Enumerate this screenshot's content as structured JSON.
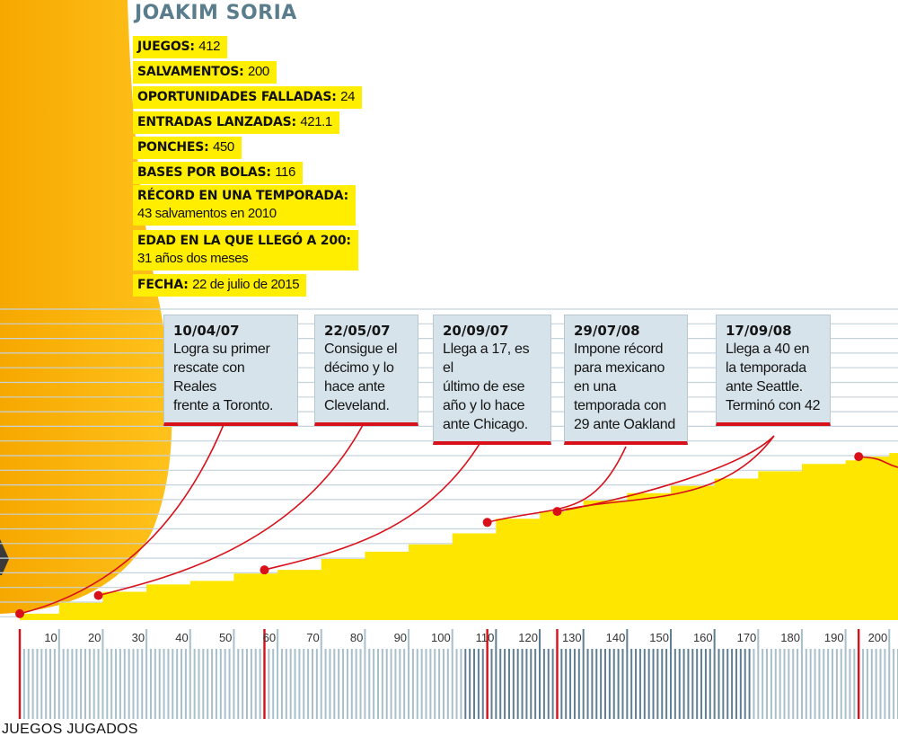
{
  "player": {
    "name": "JOAKIM SORIA"
  },
  "stats": [
    {
      "label": "JUEGOS:",
      "value": "412"
    },
    {
      "label": "SALVAMENTOS:",
      "value": "200"
    },
    {
      "label": "OPORTUNIDADES FALLADAS:",
      "value": "24"
    },
    {
      "label": "ENTRADAS LANZADAS:",
      "value": "421.1"
    },
    {
      "label": "PONCHES:",
      "value": "450"
    },
    {
      "label": "BASES POR BOLAS:",
      "value": "116"
    },
    {
      "label": "RÉCORD EN UNA TEMPORADA:",
      "value": "43 salvamentos en 2010"
    },
    {
      "label": "EDAD EN LA QUE LLEGÓ A 200:",
      "value": "31 años dos meses"
    },
    {
      "label": "FECHA:",
      "value": "22 de julio de 2015"
    }
  ],
  "milestones": [
    {
      "date": "10/04/07",
      "text": [
        "Logra su primer",
        "rescate con Reales",
        "frente a Toronto."
      ]
    },
    {
      "date": "22/05/07",
      "text": [
        "Consigue el",
        "décimo y lo",
        "hace ante",
        "Cleveland."
      ]
    },
    {
      "date": "20/09/07",
      "text": [
        "Llega a 17, es el",
        "último de ese",
        "año y lo hace",
        "ante Chicago."
      ]
    },
    {
      "date": "29/07/08",
      "text": [
        "Impone récord",
        "para mexicano",
        "en una",
        "temporada con",
        "29 ante Oakland"
      ]
    },
    {
      "date": "17/09/08",
      "text": [
        "Llega a 40 en",
        "la temporada",
        "ante Seattle.",
        "Terminó con 42"
      ]
    }
  ],
  "chart_data": {
    "type": "area",
    "xlabel": "JUEGOS JUGADOS",
    "x_ticks": [
      10,
      20,
      30,
      40,
      50,
      60,
      70,
      80,
      90,
      100,
      110,
      120,
      130,
      140,
      150,
      160,
      170,
      180,
      190,
      200
    ],
    "xlim": [
      1,
      202
    ],
    "series": [
      {
        "x": [
          1,
          10,
          20,
          30,
          40,
          50,
          60,
          70,
          80,
          90,
          100,
          110,
          120,
          126,
          130,
          140,
          150,
          160,
          170,
          180,
          190,
          193,
          200,
          202
        ],
        "y": [
          1,
          4,
          7,
          9,
          10,
          12,
          13,
          16,
          18,
          20,
          23,
          27,
          29,
          30,
          32,
          34,
          36,
          38,
          40,
          42,
          43,
          44,
          45,
          46
        ]
      }
    ],
    "milestone_points": [
      {
        "x": 1,
        "y": 1
      },
      {
        "x": 19,
        "y": 6
      },
      {
        "x": 57,
        "y": 13
      },
      {
        "x": 108,
        "y": 26
      },
      {
        "x": 124,
        "y": 29
      },
      {
        "x": 193,
        "y": 44
      }
    ],
    "highlight_ticks": [
      1,
      57,
      108,
      124,
      193
    ],
    "colors": {
      "area": "#ffe600",
      "milestone": "#d8101a",
      "grid": "#c5d3dc",
      "tick_light": "#a8bfcc",
      "tick_dark": "#5f7f92"
    }
  }
}
